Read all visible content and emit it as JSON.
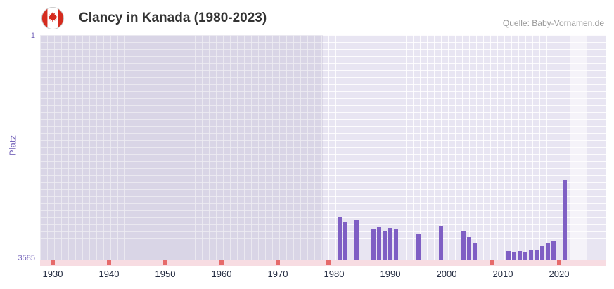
{
  "header": {
    "title": "Clancy in Kanada (1980-2023)",
    "source": "Quelle: Baby-Vornamen.de"
  },
  "axes": {
    "y_label": "Platz",
    "y_tick_top": "1",
    "y_tick_bottom": "3585"
  },
  "colors": {
    "bar": "#7f5fc4",
    "plot_bg": "#e8e5f2",
    "axis_text": "#7766bb",
    "year_text": "#222a3f",
    "band_bg": "#f7dce2",
    "no_data_mark": "#e66a6a",
    "title_text": "#333333",
    "source_text": "#999999",
    "flag_red": "#d52b1e"
  },
  "chart_data": {
    "type": "bar",
    "title": "Clancy in Kanada (1980-2023)",
    "xlabel": "",
    "ylabel": "Platz",
    "ylim": [
      1,
      3585
    ],
    "y_inverted": true,
    "grid": true,
    "x_tick_labels": [
      1930,
      1940,
      1950,
      1960,
      1970,
      1980,
      1990,
      2000,
      2010,
      2020
    ],
    "bars": [
      {
        "year": 1981,
        "rank": 2910
      },
      {
        "year": 1982,
        "rank": 2980
      },
      {
        "year": 1984,
        "rank": 2955
      },
      {
        "year": 1987,
        "rank": 3100
      },
      {
        "year": 1988,
        "rank": 3060
      },
      {
        "year": 1989,
        "rank": 3130
      },
      {
        "year": 1990,
        "rank": 3080
      },
      {
        "year": 1991,
        "rank": 3105
      },
      {
        "year": 1995,
        "rank": 3170
      },
      {
        "year": 1999,
        "rank": 3050
      },
      {
        "year": 2003,
        "rank": 3140
      },
      {
        "year": 2004,
        "rank": 3230
      },
      {
        "year": 2005,
        "rank": 3320
      },
      {
        "year": 2011,
        "rank": 3450
      },
      {
        "year": 2012,
        "rank": 3465
      },
      {
        "year": 2013,
        "rank": 3445
      },
      {
        "year": 2014,
        "rank": 3460
      },
      {
        "year": 2015,
        "rank": 3440
      },
      {
        "year": 2016,
        "rank": 3425
      },
      {
        "year": 2017,
        "rank": 3370
      },
      {
        "year": 2018,
        "rank": 3320
      },
      {
        "year": 2019,
        "rank": 3280
      },
      {
        "year": 2021,
        "rank": 2320
      }
    ],
    "no_data_years": [
      1930,
      1940,
      1950,
      1960,
      1970,
      1979,
      2008,
      2020
    ],
    "shaded_region_end_year": 1978,
    "highlight_region_years": [
      2022,
      2025
    ]
  }
}
